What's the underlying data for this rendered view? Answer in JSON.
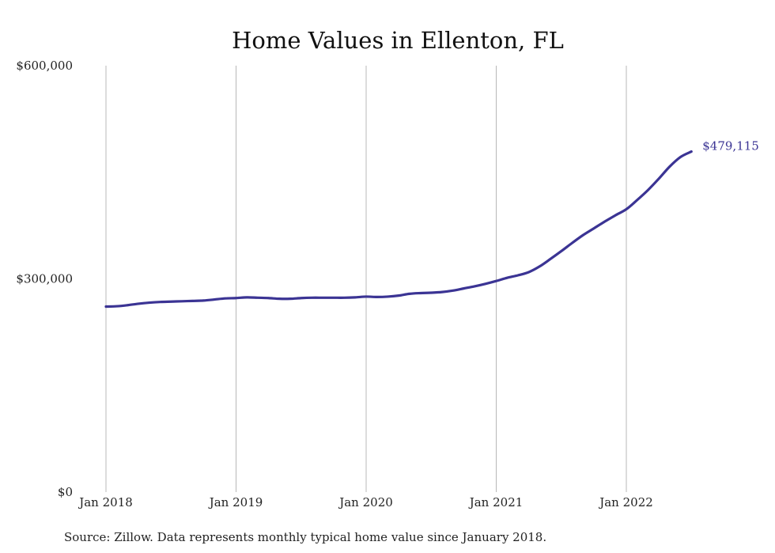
{
  "chart_data": {
    "type": "line",
    "title": "Home Values in Ellenton, FL",
    "xlabel": "",
    "ylabel": "",
    "ylim": [
      0,
      600000
    ],
    "yticks": [
      {
        "value": 0,
        "label": "$0"
      },
      {
        "value": 300000,
        "label": "$300,000"
      },
      {
        "value": 600000,
        "label": "$600,000"
      }
    ],
    "xticks": [
      {
        "value": "2018-01",
        "label": "Jan 2018"
      },
      {
        "value": "2019-01",
        "label": "Jan 2019"
      },
      {
        "value": "2020-01",
        "label": "Jan 2020"
      },
      {
        "value": "2021-01",
        "label": "Jan 2021"
      },
      {
        "value": "2022-01",
        "label": "Jan 2022"
      }
    ],
    "vertical_grid": true,
    "horizontal_grid": false,
    "line_color": "#3b3494",
    "end_label": "$479,115",
    "source_note": "Source: Zillow. Data represents monthly typical home value since January 2018.",
    "series": [
      {
        "x": [
          "2018-01",
          "2018-02",
          "2018-03",
          "2018-04",
          "2018-05",
          "2018-06",
          "2018-07",
          "2018-08",
          "2018-09",
          "2018-10",
          "2018-11",
          "2018-12",
          "2019-01",
          "2019-02",
          "2019-03",
          "2019-04",
          "2019-05",
          "2019-06",
          "2019-07",
          "2019-08",
          "2019-09",
          "2019-10",
          "2019-11",
          "2019-12",
          "2020-01",
          "2020-02",
          "2020-03",
          "2020-04",
          "2020-05",
          "2020-06",
          "2020-07",
          "2020-08",
          "2020-09",
          "2020-10",
          "2020-11",
          "2020-12",
          "2021-01",
          "2021-02",
          "2021-03",
          "2021-04",
          "2021-05",
          "2021-06",
          "2021-07",
          "2021-08",
          "2021-09",
          "2021-10",
          "2021-11",
          "2021-12",
          "2022-01",
          "2022-02",
          "2022-03",
          "2022-04",
          "2022-05",
          "2022-06",
          "2022-07"
        ],
        "values": [
          261000,
          261500,
          263000,
          265000,
          266500,
          267500,
          268000,
          268500,
          269000,
          269500,
          271000,
          272500,
          273000,
          274000,
          273500,
          273000,
          272000,
          272000,
          273000,
          273500,
          273500,
          273500,
          273500,
          274000,
          275000,
          274500,
          275000,
          276500,
          279000,
          280000,
          280500,
          281500,
          283500,
          286500,
          289500,
          293000,
          297000,
          301500,
          305000,
          309500,
          317500,
          328000,
          339000,
          350500,
          361500,
          371000,
          380500,
          389500,
          398000,
          411000,
          425000,
          441000,
          458000,
          471500,
          479115
        ]
      }
    ]
  }
}
